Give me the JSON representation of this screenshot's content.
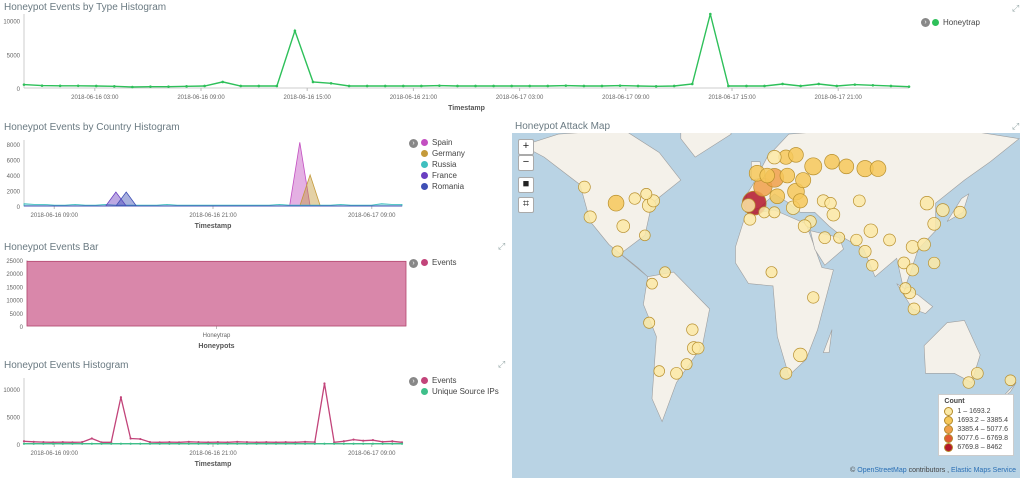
{
  "panel1": {
    "title": "Honeypot Events by Type Histogram",
    "legend": [
      {
        "label": "Honeytrap",
        "color": "#2ec05a"
      }
    ],
    "y_ticks": [
      "10000",
      "5000",
      "0"
    ],
    "x_ticks": [
      "2018-06-16 03:00",
      "2018-06-16 09:00",
      "2018-06-16 15:00",
      "2018-06-16 21:00",
      "2018-06-17 03:00",
      "2018-06-17 09:00",
      "2018-06-17 15:00",
      "2018-06-17 21:00"
    ],
    "xlabel": "Timestamp"
  },
  "panel2": {
    "title": "Honeypot Events by Country Histogram",
    "legend": [
      {
        "label": "Spain",
        "color": "#c34fc1"
      },
      {
        "label": "Germany",
        "color": "#c49a3a"
      },
      {
        "label": "Russia",
        "color": "#3fbfbf"
      },
      {
        "label": "France",
        "color": "#6a3fc1"
      },
      {
        "label": "Romania",
        "color": "#3f4fb5"
      }
    ],
    "y_ticks": [
      "8000",
      "6000",
      "4000",
      "2000",
      "0"
    ],
    "x_ticks": [
      "2018-06-16 09:00",
      "2018-06-16 21:00",
      "2018-06-17 09:00"
    ],
    "xlabel": "Timestamp"
  },
  "panel3": {
    "title": "Honeypot Events Bar",
    "legend": [
      {
        "label": "Events",
        "color": "#c2447a"
      }
    ],
    "y_ticks": [
      "25000",
      "20000",
      "15000",
      "10000",
      "5000",
      "0"
    ],
    "x_ticks": [
      "Honeytrap"
    ],
    "xlabel": "Honeypots"
  },
  "panel4": {
    "title": "Honeypot Events Histogram",
    "legend": [
      {
        "label": "Events",
        "color": "#c2447a"
      },
      {
        "label": "Unique Source IPs",
        "color": "#3fbf8a"
      }
    ],
    "y_ticks": [
      "10000",
      "5000",
      "0"
    ],
    "x_ticks": [
      "2018-06-16 09:00",
      "2018-06-16 21:00",
      "2018-06-17 09:00"
    ],
    "xlabel": "Timestamp"
  },
  "map": {
    "title": "Honeypot Attack Map",
    "zoom_in": "+",
    "zoom_out": "−",
    "legend_title": "Count",
    "legend": [
      {
        "label": "1 – 1693.2",
        "color": "#fbe9a6"
      },
      {
        "label": "1693.2 – 3385.4",
        "color": "#f6c85a"
      },
      {
        "label": "3385.4 – 5077.6",
        "color": "#f0a04a"
      },
      {
        "label": "5077.6 – 6769.8",
        "color": "#e05a35"
      },
      {
        "label": "6769.8 – 8462",
        "color": "#b3182b"
      }
    ],
    "attribution_prefix": "© ",
    "attribution_osm": "OpenStreetMap",
    "attribution_mid": " contributors , ",
    "attribution_ems": "Elastic Maps Service"
  },
  "chart_data": [
    {
      "type": "line",
      "title": "Honeypot Events by Type Histogram",
      "xlabel": "Timestamp",
      "ylim": [
        0,
        11000
      ],
      "series": [
        {
          "name": "Honeytrap",
          "values": [
            500,
            350,
            320,
            330,
            300,
            250,
            150,
            200,
            200,
            250,
            300,
            900,
            300,
            300,
            300,
            8500,
            900,
            700,
            300,
            300,
            300,
            300,
            300,
            350,
            300,
            300,
            300,
            300,
            300,
            300,
            350,
            300,
            300,
            350,
            300,
            250,
            300,
            600,
            11000,
            300,
            300,
            300,
            600,
            300,
            600,
            300,
            500,
            400,
            300,
            200
          ]
        }
      ]
    },
    {
      "type": "area",
      "title": "Honeypot Events by Country Histogram",
      "xlabel": "Timestamp",
      "ylim": [
        0,
        8500
      ],
      "series": [
        {
          "name": "Spain",
          "values": [
            0,
            0,
            0,
            0,
            0,
            0,
            0,
            0,
            0,
            0,
            0,
            0,
            0,
            0,
            0,
            0,
            0,
            0,
            0,
            0,
            0,
            0,
            0,
            0,
            0,
            0,
            0,
            8200,
            0,
            0,
            0,
            0,
            0,
            0,
            0,
            0,
            0,
            0
          ]
        },
        {
          "name": "Germany",
          "values": [
            0,
            0,
            0,
            0,
            0,
            0,
            0,
            0,
            0,
            0,
            0,
            0,
            0,
            0,
            0,
            0,
            0,
            0,
            0,
            0,
            0,
            0,
            0,
            0,
            0,
            0,
            0,
            0,
            4000,
            0,
            0,
            0,
            0,
            0,
            0,
            0,
            0,
            0
          ]
        },
        {
          "name": "Russia",
          "values": [
            300,
            200,
            200,
            100,
            100,
            200,
            100,
            100,
            200,
            100,
            100,
            100,
            100,
            100,
            200,
            100,
            100,
            100,
            100,
            100,
            100,
            100,
            100,
            100,
            100,
            200,
            100,
            100,
            100,
            100,
            100,
            200,
            100,
            100,
            100,
            300,
            200,
            200
          ]
        },
        {
          "name": "France",
          "values": [
            0,
            0,
            0,
            0,
            0,
            0,
            0,
            0,
            0,
            1800,
            0,
            0,
            0,
            0,
            0,
            0,
            0,
            0,
            0,
            0,
            0,
            0,
            0,
            0,
            0,
            0,
            0,
            0,
            0,
            0,
            0,
            0,
            0,
            0,
            0,
            0,
            0,
            0
          ]
        },
        {
          "name": "Romania",
          "values": [
            0,
            0,
            0,
            0,
            0,
            0,
            0,
            0,
            0,
            0,
            1800,
            0,
            0,
            0,
            0,
            0,
            0,
            0,
            0,
            0,
            0,
            0,
            0,
            0,
            0,
            0,
            0,
            0,
            0,
            0,
            0,
            0,
            0,
            0,
            0,
            0,
            0,
            0
          ]
        }
      ]
    },
    {
      "type": "bar",
      "title": "Honeypot Events Bar",
      "xlabel": "Honeypots",
      "categories": [
        "Honeytrap"
      ],
      "ylim": [
        0,
        25000
      ],
      "series": [
        {
          "name": "Events",
          "values": [
            24500
          ]
        }
      ]
    },
    {
      "type": "line",
      "title": "Honeypot Events Histogram",
      "xlabel": "Timestamp",
      "ylim": [
        0,
        12000
      ],
      "series": [
        {
          "name": "Events",
          "values": [
            500,
            400,
            350,
            300,
            350,
            300,
            350,
            1000,
            300,
            300,
            8500,
            1000,
            900,
            350,
            300,
            350,
            300,
            400,
            350,
            300,
            350,
            300,
            400,
            350,
            300,
            350,
            300,
            350,
            300,
            400,
            350,
            11000,
            300,
            500,
            800,
            600,
            700,
            400,
            500,
            300
          ]
        },
        {
          "name": "Unique Source IPs",
          "values": [
            50,
            50,
            50,
            50,
            50,
            50,
            50,
            50,
            50,
            50,
            50,
            50,
            50,
            50,
            50,
            50,
            50,
            50,
            50,
            50,
            50,
            50,
            50,
            50,
            50,
            50,
            50,
            50,
            50,
            50,
            50,
            50,
            50,
            50,
            50,
            50,
            50,
            50,
            50,
            50
          ]
        }
      ]
    }
  ],
  "map_points": [
    {
      "lon": -100,
      "lat": 40,
      "count": 2500
    },
    {
      "lon": -122,
      "lat": 47,
      "count": 900
    },
    {
      "lon": -118,
      "lat": 34,
      "count": 1000
    },
    {
      "lon": -95,
      "lat": 30,
      "count": 1200
    },
    {
      "lon": -87,
      "lat": 42,
      "count": 800
    },
    {
      "lon": -77,
      "lat": 39,
      "count": 1500
    },
    {
      "lon": -74,
      "lat": 41,
      "count": 1000
    },
    {
      "lon": -80,
      "lat": 26,
      "count": 600
    },
    {
      "lon": -79,
      "lat": 44,
      "count": 700
    },
    {
      "lon": -99,
      "lat": 19,
      "count": 700
    },
    {
      "lon": -75,
      "lat": 5,
      "count": 600
    },
    {
      "lon": -66,
      "lat": 10,
      "count": 600
    },
    {
      "lon": -77,
      "lat": -12,
      "count": 700
    },
    {
      "lon": -47,
      "lat": -15,
      "count": 800
    },
    {
      "lon": -46,
      "lat": -23,
      "count": 1200
    },
    {
      "lon": -43,
      "lat": -23,
      "count": 900
    },
    {
      "lon": -58,
      "lat": -34,
      "count": 900
    },
    {
      "lon": -70,
      "lat": -33,
      "count": 600
    },
    {
      "lon": -51,
      "lat": -30,
      "count": 700
    },
    {
      "lon": -4,
      "lat": 40,
      "count": 8462
    },
    {
      "lon": 2,
      "lat": 47,
      "count": 4000
    },
    {
      "lon": 10,
      "lat": 51,
      "count": 4200
    },
    {
      "lon": -2,
      "lat": 53,
      "count": 2500
    },
    {
      "lon": 12,
      "lat": 43,
      "count": 2000
    },
    {
      "lon": 19,
      "lat": 52,
      "count": 2000
    },
    {
      "lon": 25,
      "lat": 45,
      "count": 3000
    },
    {
      "lon": 37,
      "lat": 56,
      "count": 3200
    },
    {
      "lon": 30,
      "lat": 50,
      "count": 2200
    },
    {
      "lon": 18,
      "lat": 60,
      "count": 1800
    },
    {
      "lon": 25,
      "lat": 61,
      "count": 2000
    },
    {
      "lon": 10,
      "lat": 60,
      "count": 1500
    },
    {
      "lon": -8,
      "lat": 39,
      "count": 1500
    },
    {
      "lon": 5,
      "lat": 52,
      "count": 2000
    },
    {
      "lon": 23,
      "lat": 38,
      "count": 1500
    },
    {
      "lon": 28,
      "lat": 41,
      "count": 1800
    },
    {
      "lon": 35,
      "lat": 32,
      "count": 900
    },
    {
      "lon": 31,
      "lat": 30,
      "count": 1200
    },
    {
      "lon": 45,
      "lat": 25,
      "count": 900
    },
    {
      "lon": 51,
      "lat": 35,
      "count": 1200
    },
    {
      "lon": 55,
      "lat": 25,
      "count": 700
    },
    {
      "lon": 3,
      "lat": 36,
      "count": 700
    },
    {
      "lon": -7,
      "lat": 33,
      "count": 900
    },
    {
      "lon": 10,
      "lat": 36,
      "count": 700
    },
    {
      "lon": 8,
      "lat": 10,
      "count": 700
    },
    {
      "lon": 37,
      "lat": -1,
      "count": 800
    },
    {
      "lon": 28,
      "lat": -26,
      "count": 1500
    },
    {
      "lon": 18,
      "lat": -34,
      "count": 900
    },
    {
      "lon": 73,
      "lat": 55,
      "count": 2800
    },
    {
      "lon": 82,
      "lat": 55,
      "count": 2500
    },
    {
      "lon": 60,
      "lat": 56,
      "count": 2000
    },
    {
      "lon": 50,
      "lat": 58,
      "count": 2000
    },
    {
      "lon": 77,
      "lat": 28,
      "count": 1500
    },
    {
      "lon": 73,
      "lat": 19,
      "count": 1000
    },
    {
      "lon": 78,
      "lat": 13,
      "count": 800
    },
    {
      "lon": 90,
      "lat": 24,
      "count": 900
    },
    {
      "lon": 100,
      "lat": 14,
      "count": 900
    },
    {
      "lon": 106,
      "lat": 21,
      "count": 1200
    },
    {
      "lon": 106,
      "lat": 11,
      "count": 1000
    },
    {
      "lon": 104,
      "lat": 1,
      "count": 900
    },
    {
      "lon": 116,
      "lat": 40,
      "count": 1500
    },
    {
      "lon": 121,
      "lat": 31,
      "count": 1200
    },
    {
      "lon": 114,
      "lat": 22,
      "count": 1200
    },
    {
      "lon": 127,
      "lat": 37,
      "count": 1200
    },
    {
      "lon": 139,
      "lat": 36,
      "count": 1000
    },
    {
      "lon": 121,
      "lat": 14,
      "count": 800
    },
    {
      "lon": 107,
      "lat": -6,
      "count": 900
    },
    {
      "lon": 101,
      "lat": 3,
      "count": 700
    },
    {
      "lon": 151,
      "lat": -34,
      "count": 900
    },
    {
      "lon": 145,
      "lat": -38,
      "count": 800
    },
    {
      "lon": 174,
      "lat": -37,
      "count": 600
    },
    {
      "lon": 69,
      "lat": 41,
      "count": 900
    },
    {
      "lon": 44,
      "lat": 41,
      "count": 1000
    },
    {
      "lon": 49,
      "lat": 40,
      "count": 800
    },
    {
      "lon": 67,
      "lat": 24,
      "count": 800
    }
  ]
}
